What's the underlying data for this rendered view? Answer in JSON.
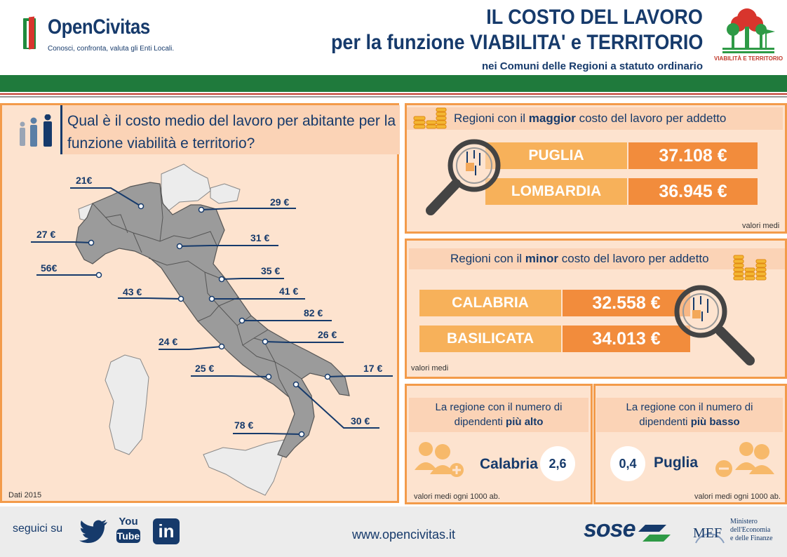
{
  "header": {
    "logo_name": "OpenCivitas",
    "logo_tagline": "Conosci, confronta, valuta gli Enti Locali.",
    "title_line1": "IL COSTO DEL LAVORO",
    "title_line2": "per la funzione VIABILITA' e TERRITORIO",
    "subtitle": "nei Comuni delle Regioni a statuto ordinario",
    "tree_caption": "VIABILITÀ E TERRITORIO",
    "tree_icon": "tree-icon",
    "colors": {
      "navy": "#163a6b",
      "green": "#1f7a3c",
      "red": "#c0392b",
      "orange": "#f39b4a"
    }
  },
  "map_panel": {
    "question": "Qual è il costo medio del lavoro per abitante per la funzione viabilità e territorio?",
    "people_icon": "people-icon",
    "source": "Dati 2015",
    "values": [
      "21€",
      "29 €",
      "27 €",
      "31 €",
      "56€",
      "35 €",
      "43 €",
      "41 €",
      "82 €",
      "24 €",
      "26 €",
      "25 €",
      "17 €",
      "30 €",
      "78 €"
    ]
  },
  "highest": {
    "title_pre": "Regioni con il ",
    "title_bold": "maggior",
    "title_post": " costo del lavoro per addetto",
    "rows": [
      {
        "region": "PUGLIA",
        "value": "37.108 €"
      },
      {
        "region": "LOMBARDIA",
        "value": "36.945 €"
      }
    ],
    "note": "valori medi",
    "icons": [
      "coins-icon",
      "magnifier-icon"
    ]
  },
  "lowest": {
    "title_pre": "Regioni con il ",
    "title_bold": "minor",
    "title_post": " costo del lavoro per addetto",
    "rows": [
      {
        "region": "CALABRIA",
        "value": "32.558 €"
      },
      {
        "region": "BASILICATA",
        "value": "34.013 €"
      }
    ],
    "note": "valori medi",
    "icons": [
      "coins-icon",
      "magnifier-icon"
    ]
  },
  "employees_high": {
    "title_line1": "La regione con il numero di",
    "title_pre": "dipendenti ",
    "title_bold": "più alto",
    "region": "Calabria",
    "value": "2,6",
    "note": "valori medi ogni 1000 ab.",
    "icon": "people-plus-icon"
  },
  "employees_low": {
    "title_line1": "La regione con il numero di",
    "title_pre": "dipendenti ",
    "title_bold": "più basso",
    "region": "Puglia",
    "value": "0,4",
    "note": "valori medi ogni 1000 ab.",
    "icon": "people-minus-icon"
  },
  "footer": {
    "follow": "seguici su",
    "youtube_top": "You",
    "youtube_bottom": "Tube",
    "linkedin": "in",
    "url": "www.opencivitas.it",
    "sose": "sose",
    "mef": "MEF",
    "ministero": [
      "Ministero",
      "dell'Economia",
      "e delle Finanze"
    ],
    "social_icons": [
      "twitter-icon",
      "youtube-icon",
      "linkedin-icon"
    ]
  }
}
